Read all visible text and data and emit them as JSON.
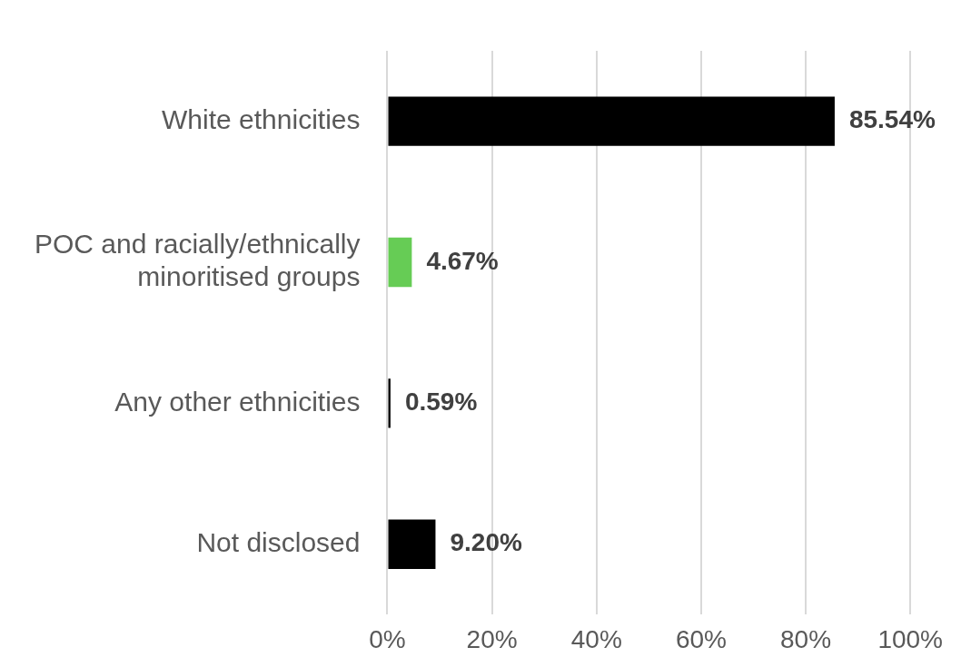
{
  "chart_data": {
    "type": "bar",
    "orientation": "horizontal",
    "categories": [
      "White ethnicities",
      "POC and racially/ethnically minoritised groups",
      "Any other ethnicities",
      "Not disclosed"
    ],
    "values": [
      85.54,
      4.67,
      0.59,
      9.2
    ],
    "colors": [
      "#000000",
      "#66cc55",
      "#000000",
      "#000000"
    ],
    "value_labels": [
      "85.54%",
      "4.67%",
      "0.59%",
      "9.20%"
    ],
    "xlim": [
      0,
      100
    ],
    "xticks": [
      {
        "value": 0,
        "label": "0%"
      },
      {
        "value": 20,
        "label": "20%"
      },
      {
        "value": 40,
        "label": "40%"
      },
      {
        "value": 60,
        "label": "60%"
      },
      {
        "value": 80,
        "label": "80%"
      },
      {
        "value": 100,
        "label": "100%"
      }
    ],
    "grid": "x",
    "legend": false
  }
}
